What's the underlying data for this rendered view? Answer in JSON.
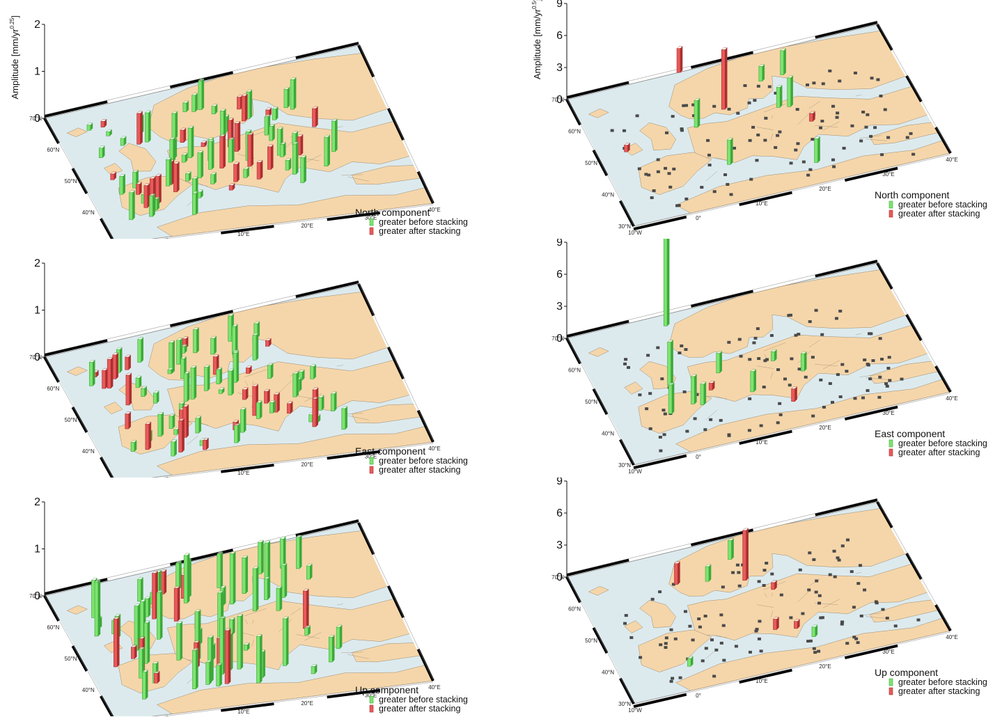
{
  "colors": {
    "sea": "#dceaee",
    "land": "#f5d6aa",
    "border": "#9a8a70",
    "frame_dark": "#000000",
    "frame_light": "#ffffff",
    "bar_green": "#7de36f",
    "bar_green_dark": "#3da83a",
    "bar_red": "#e85a5a",
    "bar_red_dark": "#a92f2f",
    "station": "#4a4a4a"
  },
  "legend_items": {
    "green": "greater before stacking",
    "red": "greater after stacking"
  },
  "lat_ticks": [
    "30°N",
    "40°N",
    "50°N",
    "60°N",
    "70°N"
  ],
  "lon_ticks": [
    "10°W",
    "0°",
    "10°E",
    "20°E",
    "30°E",
    "40°E"
  ],
  "panels": [
    {
      "id": "north-025",
      "component": "North component",
      "z_axis_label": "Amplitude [mm/yr",
      "z_axis_exponent": "0.25",
      "z_axis_close": "]",
      "z_ticks": [
        "0",
        "1",
        "2"
      ],
      "z_max": 2
    },
    {
      "id": "north-05",
      "component": "North component",
      "z_axis_label": "Amplitude [mm/yr",
      "z_axis_exponent": "0.5",
      "z_axis_close": "]",
      "z_ticks": [
        "0",
        "3",
        "6",
        "9"
      ],
      "z_max": 9
    },
    {
      "id": "east-025",
      "component": "East component",
      "z_ticks": [
        "0",
        "1",
        "2"
      ],
      "z_max": 2
    },
    {
      "id": "east-05",
      "component": "East component",
      "z_ticks": [
        "0",
        "3",
        "6",
        "9"
      ],
      "z_max": 9
    },
    {
      "id": "up-025",
      "component": "Up component",
      "z_ticks": [
        "0",
        "1",
        "2"
      ],
      "z_max": 2
    },
    {
      "id": "up-05",
      "component": "Up component",
      "z_ticks": [
        "0",
        "3",
        "6",
        "9"
      ],
      "z_max": 9
    }
  ]
}
